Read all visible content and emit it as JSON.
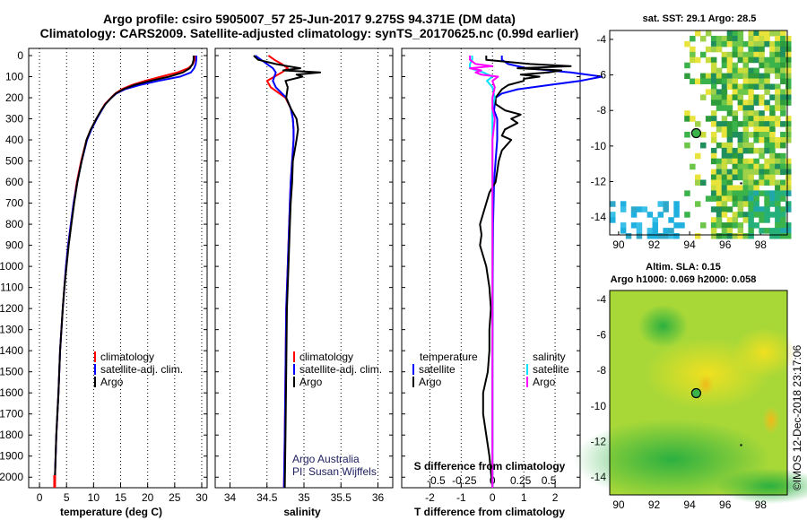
{
  "title": {
    "line1": "Argo profile: csiro 5905007_57 25-Jun-2017 9.275S 94.371E (DM data)",
    "line2": "Climatology: CARS2009. Satellite-adjusted climatology: synTS_20170625.nc (0.99d earlier)"
  },
  "colors": {
    "climatology": "#ff0000",
    "satellite": "#0000ff",
    "argo": "#000000",
    "sat_salinity": "#00e0ff",
    "clim_salinity_diff": "#ff00ff"
  },
  "depth_ticks": [
    "0",
    "100",
    "200",
    "300",
    "400",
    "500",
    "600",
    "700",
    "800",
    "900",
    "1000",
    "1100",
    "1200",
    "1300",
    "1400",
    "1500",
    "1600",
    "1700",
    "1800",
    "1900",
    "2000"
  ],
  "chart_data": [
    {
      "type": "line",
      "name": "temperature",
      "xlabel": "temperature (deg C)",
      "ylabel": "depth",
      "xlim": [
        -2,
        31
      ],
      "ylim": [
        2050,
        0
      ],
      "xticks": [
        "0",
        "5",
        "10",
        "15",
        "20",
        "25",
        "30"
      ],
      "legend": [
        "climatology",
        "satellite-adj. clim.",
        "Argo"
      ],
      "series": [
        {
          "name": "climatology",
          "depth": [
            0,
            20,
            40,
            60,
            80,
            100,
            120,
            140,
            160,
            180,
            200,
            230,
            260,
            300,
            350,
            400,
            500,
            600,
            700,
            800,
            900,
            1000,
            1100,
            1200,
            1400,
            1600,
            1800,
            2050
          ],
          "values": [
            28.7,
            28.7,
            28.4,
            27.5,
            25.5,
            22.5,
            19.5,
            17,
            15.2,
            14,
            13.2,
            12.1,
            11.4,
            10.5,
            9.5,
            8.7,
            7.7,
            6.9,
            6.3,
            5.8,
            5.3,
            4.9,
            4.6,
            4.3,
            3.8,
            3.5,
            3.1,
            2.8
          ]
        },
        {
          "name": "satellite-adj. clim.",
          "depth": [
            0,
            20,
            40,
            60,
            80,
            100,
            120,
            140,
            160,
            180,
            200,
            230,
            260,
            300,
            350,
            400,
            500,
            600,
            700,
            800,
            900,
            1000,
            1100,
            1200,
            1400,
            1600,
            1800,
            2050
          ],
          "values": [
            29.0,
            29.0,
            28.9,
            28.6,
            28.0,
            26.0,
            22.0,
            18.5,
            15.8,
            14.2,
            13.3,
            12.2,
            11.5,
            10.6,
            9.6,
            8.8,
            7.8,
            7.0,
            6.3,
            5.8,
            5.3,
            4.9,
            4.6,
            4.3,
            3.8,
            3.5,
            3.1,
            2.8
          ]
        },
        {
          "name": "Argo",
          "depth": [
            0,
            20,
            40,
            60,
            80,
            100,
            120,
            140,
            160,
            180,
            200,
            230,
            260,
            300,
            350,
            400,
            500,
            600,
            700,
            800,
            900,
            1000,
            1100,
            1200,
            1400,
            1600,
            1800,
            2050
          ],
          "values": [
            28.5,
            28.5,
            28.3,
            27.8,
            26.5,
            24.0,
            20.5,
            17.5,
            15.5,
            14.1,
            13.3,
            12.2,
            11.4,
            10.5,
            9.5,
            8.7,
            7.8,
            7.0,
            6.4,
            5.9,
            5.4,
            5.0,
            4.6,
            4.3,
            3.8,
            3.5,
            3.1,
            2.8
          ]
        }
      ]
    },
    {
      "type": "line",
      "name": "salinity",
      "xlabel": "salinity",
      "ylabel": "depth",
      "xlim": [
        33.8,
        36.2
      ],
      "ylim": [
        2050,
        0
      ],
      "xticks": [
        "34",
        "34.5",
        "35",
        "35.5",
        "36"
      ],
      "legend": [
        "climatology",
        "satellite-adj. clim.",
        "Argo"
      ],
      "series": [
        {
          "name": "climatology",
          "depth": [
            0,
            20,
            40,
            60,
            80,
            100,
            120,
            150,
            200,
            250,
            300,
            350,
            400,
            500,
            600,
            700,
            800,
            900,
            1000,
            1200,
            1500,
            1800,
            2050
          ],
          "values": [
            34.52,
            34.6,
            34.7,
            34.78,
            34.7,
            34.6,
            34.5,
            34.55,
            34.75,
            34.82,
            34.85,
            34.86,
            34.86,
            34.84,
            34.82,
            34.81,
            34.8,
            34.79,
            34.78,
            34.76,
            34.75,
            34.74,
            34.73
          ]
        },
        {
          "name": "satellite-adj. clim.",
          "depth": [
            0,
            20,
            40,
            60,
            80,
            100,
            120,
            150,
            200,
            250,
            300,
            350,
            400,
            500,
            600,
            700,
            800,
            900,
            1000,
            1200,
            1500,
            1800,
            2050
          ],
          "values": [
            34.34,
            34.42,
            34.5,
            34.58,
            34.62,
            34.6,
            34.58,
            34.62,
            34.76,
            34.82,
            34.85,
            34.86,
            34.86,
            34.84,
            34.82,
            34.81,
            34.8,
            34.79,
            34.78,
            34.76,
            34.75,
            34.74,
            34.73
          ]
        },
        {
          "name": "Argo",
          "depth": [
            0,
            20,
            40,
            50,
            60,
            70,
            80,
            90,
            100,
            120,
            150,
            200,
            250,
            300,
            350,
            400,
            500,
            600,
            700,
            800,
            900,
            1000,
            1200,
            1500,
            1800,
            2050
          ],
          "values": [
            34.32,
            34.38,
            34.62,
            34.78,
            34.95,
            34.72,
            35.22,
            34.9,
            34.98,
            34.75,
            34.78,
            34.76,
            34.82,
            34.9,
            34.92,
            34.9,
            34.85,
            34.84,
            34.82,
            34.81,
            34.8,
            34.79,
            34.77,
            34.76,
            34.75,
            34.74
          ]
        }
      ]
    },
    {
      "type": "line",
      "name": "difference from climatology",
      "xlabel": "T difference from climatology",
      "ylabel": "depth",
      "xlim": [
        -2.9,
        2.8
      ],
      "ylim": [
        2050,
        0
      ],
      "xticks": [
        "-2",
        "-1",
        "0",
        "1",
        "2"
      ],
      "top_xlabel": "S difference from climatology",
      "top_xticks": [
        "-0.5",
        "-0.25",
        "0",
        "0.25",
        "0.5"
      ],
      "legend": [
        "temperature",
        "satellite",
        "Argo",
        "salinity",
        "satellite",
        "Argo"
      ],
      "series": [
        {
          "name": "T satellite",
          "depth": [
            0,
            20,
            40,
            60,
            80,
            100,
            120,
            140,
            160,
            180,
            200,
            260,
            300,
            400,
            500,
            600,
            800,
            1000,
            1500,
            2050
          ],
          "values": [
            0.3,
            0.3,
            0.5,
            1.1,
            2.5,
            3.5,
            2.8,
            1.8,
            0.8,
            0.3,
            0.1,
            0.05,
            0.15,
            0.15,
            0.1,
            0.05,
            0.02,
            0.01,
            0.0,
            0.0
          ]
        },
        {
          "name": "T Argo",
          "depth": [
            0,
            20,
            40,
            50,
            60,
            70,
            80,
            90,
            100,
            110,
            120,
            140,
            160,
            180,
            200,
            230,
            260,
            280,
            300,
            320,
            350,
            380,
            400,
            450,
            500,
            550,
            600,
            650,
            700,
            750,
            800,
            850,
            900,
            1000,
            1100,
            1200,
            1300,
            1400,
            1500,
            1600,
            1700,
            1800,
            1900,
            2050
          ],
          "values": [
            -0.2,
            -0.2,
            1.2,
            2.5,
            0.8,
            2.2,
            1.8,
            0.9,
            1.5,
            1.0,
            1.0,
            0.5,
            0.3,
            0.2,
            0.1,
            0.1,
            0.4,
            0.9,
            0.6,
            0.8,
            0.4,
            0.3,
            0.6,
            0.3,
            0.2,
            0.15,
            0.1,
            -0.1,
            -0.2,
            -0.3,
            -0.4,
            -0.35,
            -0.4,
            -0.2,
            -0.1,
            -0.05,
            -0.1,
            -0.1,
            -0.15,
            -0.3,
            -0.3,
            -0.2,
            -0.1,
            0.0
          ]
        },
        {
          "name": "S satellite",
          "depth": [
            0,
            20,
            40,
            60,
            80,
            100,
            120,
            150,
            200,
            250,
            300,
            400,
            500,
            600,
            800,
            1000,
            1500,
            2050
          ],
          "values": [
            -0.18,
            -0.18,
            -0.2,
            -0.2,
            -0.08,
            0.0,
            -0.05,
            0.0,
            0.02,
            0.0,
            0.0,
            0.0,
            0.0,
            0.0,
            0.0,
            0.0,
            0.0,
            0.0
          ]
        },
        {
          "name": "S Argo",
          "depth": [
            0,
            20,
            40,
            50,
            60,
            70,
            80,
            90,
            100,
            120,
            150,
            200,
            250,
            300,
            400,
            500,
            600,
            800,
            1000,
            1500,
            2050
          ],
          "values": [
            -0.2,
            -0.2,
            -0.15,
            0.0,
            -0.2,
            -0.1,
            -0.15,
            -0.1,
            0.05,
            0.0,
            0.02,
            0.0,
            0.0,
            0.02,
            0.0,
            0.0,
            0.0,
            0.0,
            0.0,
            0.0,
            0.0
          ]
        }
      ]
    },
    {
      "type": "heatmap",
      "name": "satellite SST map",
      "title": "sat. SST: 29.1  Argo: 28.5",
      "xlim": [
        89.5,
        99.5
      ],
      "ylim": [
        -15,
        -3.5
      ],
      "xticks": [
        "90",
        "92",
        "94",
        "96",
        "98"
      ],
      "yticks": [
        "-4",
        "-6",
        "-8",
        "-10",
        "-12",
        "-14"
      ],
      "marker_lon": 94.371,
      "marker_lat": -9.275
    },
    {
      "type": "heatmap",
      "name": "sea level anomaly map",
      "title_line1": "Altim. SLA: 0.15",
      "title_line2": "Argo h1000: 0.069 h2000: 0.058",
      "xlim": [
        89.5,
        99.5
      ],
      "ylim": [
        -15,
        -3.5
      ],
      "xticks": [
        "90",
        "92",
        "94",
        "96",
        "98"
      ],
      "yticks": [
        "-4",
        "-6",
        "-8",
        "-10",
        "-12",
        "-14"
      ],
      "marker_lon": 94.371,
      "marker_lat": -9.275
    }
  ],
  "legends": {
    "temp": [
      "climatology",
      "satellite-adj. clim.",
      "Argo"
    ],
    "sal": [
      "climatology",
      "satellite-adj. clim.",
      "Argo"
    ],
    "diff_left_head": "temperature",
    "diff_right_head": "salinity",
    "diff_items": [
      "satellite",
      "Argo"
    ]
  },
  "credits": {
    "line1": "Argo Australia",
    "line2": "PI: Susan Wijffels",
    "imos": "©IMOS 12-Dec-2018 23:17:06"
  },
  "map1": {
    "title": "sat. SST: 29.1  Argo: 28.5"
  },
  "map2": {
    "title_line1": "Altim. SLA: 0.15",
    "title_line2": "Argo h1000: 0.069 h2000: 0.058"
  }
}
